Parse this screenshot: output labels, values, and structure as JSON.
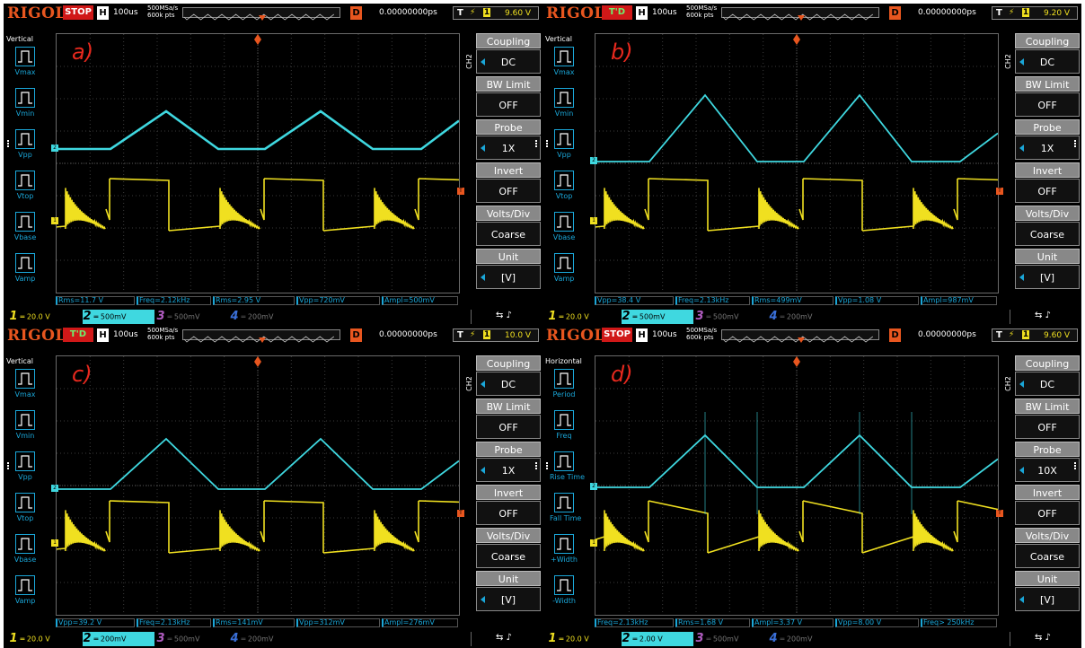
{
  "panels": [
    {
      "id": "a",
      "label": "a)",
      "status": "STOP",
      "timebase": "100us",
      "rate1": "500MSa/s",
      "rate2": "600k pts",
      "delay": "0.00000000ps",
      "trigger_level": "9.60 V",
      "left_title": "Vertical",
      "left_items": [
        "Vmax",
        "Vmin",
        "Vpp",
        "Vtop",
        "Vbase",
        "Vamp"
      ],
      "right_menu": [
        {
          "title": "Coupling",
          "value": "DC"
        },
        {
          "title": "BW Limit",
          "value": "OFF"
        },
        {
          "title": "Probe",
          "value": "1X"
        },
        {
          "title": "Invert",
          "value": "OFF"
        },
        {
          "title": "Volts/Div",
          "value": "Coarse"
        },
        {
          "title": "Unit",
          "value": "[V]"
        }
      ],
      "measurements": [
        "Rms=11.7 V",
        "Freq=2.12kHz",
        "Rms=2.95 V",
        "Vpp=720mV",
        "Ampl=500mV"
      ],
      "channels": [
        "20.0 V",
        "500mV",
        "500mV",
        "200mV"
      ],
      "cyan_type": "noisy"
    },
    {
      "id": "b",
      "label": "b)",
      "status": "T'D",
      "timebase": "100us",
      "rate1": "500MSa/s",
      "rate2": "600k pts",
      "delay": "0.00000000ps",
      "trigger_level": "9.20 V",
      "left_title": "Vertical",
      "left_items": [
        "Vmax",
        "Vmin",
        "Vpp",
        "Vtop",
        "Vbase",
        "Vamp"
      ],
      "right_menu": [
        {
          "title": "Coupling",
          "value": "DC"
        },
        {
          "title": "BW Limit",
          "value": "OFF"
        },
        {
          "title": "Probe",
          "value": "1X"
        },
        {
          "title": "Invert",
          "value": "OFF"
        },
        {
          "title": "Volts/Div",
          "value": "Coarse"
        },
        {
          "title": "Unit",
          "value": "[V]"
        }
      ],
      "measurements": [
        "Vpp=38.4 V",
        "Freq=2.13kHz",
        "Rms=499mV",
        "Vpp=1.08 V",
        "Ampl=987mV"
      ],
      "channels": [
        "20.0 V",
        "500mV",
        "500mV",
        "200mV"
      ],
      "cyan_type": "big"
    },
    {
      "id": "c",
      "label": "c)",
      "status": "T'D",
      "timebase": "100us",
      "rate1": "500MSa/s",
      "rate2": "600k pts",
      "delay": "0.00000000ps",
      "trigger_level": "10.0 V",
      "left_title": "Vertical",
      "left_items": [
        "Vmax",
        "Vmin",
        "Vpp",
        "Vtop",
        "Vbase",
        "Vamp"
      ],
      "right_menu": [
        {
          "title": "Coupling",
          "value": "DC"
        },
        {
          "title": "BW Limit",
          "value": "OFF"
        },
        {
          "title": "Probe",
          "value": "1X"
        },
        {
          "title": "Invert",
          "value": "OFF"
        },
        {
          "title": "Volts/Div",
          "value": "Coarse"
        },
        {
          "title": "Unit",
          "value": "[V]"
        }
      ],
      "measurements": [
        "Vpp=39.2 V",
        "Freq=2.13kHz",
        "Rms=141mV",
        "Vpp=312mV",
        "Ampl=276mV"
      ],
      "channels": [
        "20.0 V",
        "200mV",
        "500mV",
        "200mV"
      ],
      "cyan_type": "medium"
    },
    {
      "id": "d",
      "label": "d)",
      "status": "STOP",
      "timebase": "100us",
      "rate1": "500MSa/s",
      "rate2": "600k pts",
      "delay": "0.00000000ps",
      "trigger_level": "9.60 V",
      "left_title": "Horizontal",
      "left_items": [
        "Period",
        "Freq",
        "Rise Time",
        "Fall Time",
        "+Width",
        "-Width"
      ],
      "right_menu": [
        {
          "title": "Coupling",
          "value": "DC"
        },
        {
          "title": "BW Limit",
          "value": "OFF"
        },
        {
          "title": "Probe",
          "value": "10X"
        },
        {
          "title": "Invert",
          "value": "OFF"
        },
        {
          "title": "Volts/Div",
          "value": "Coarse"
        },
        {
          "title": "Unit",
          "value": "[V]"
        }
      ],
      "measurements": [
        "Freq=2.13kHz",
        "Rms=1.68 V",
        "Ampl=3.37 V",
        "Vpp=8.00 V",
        "Freq> 250kHz"
      ],
      "channels": [
        "20.0 V",
        "2.00 V",
        "500mV",
        "200mV"
      ],
      "cyan_type": "spiky"
    }
  ],
  "brand": "RIGOL",
  "colors": {
    "ch1": "#f0e020",
    "ch2": "#3fd8e0",
    "accent": "#1aa7d9",
    "ch3": "#b05cc0",
    "ch4": "#3a6fd8",
    "label": "#e8291e"
  }
}
